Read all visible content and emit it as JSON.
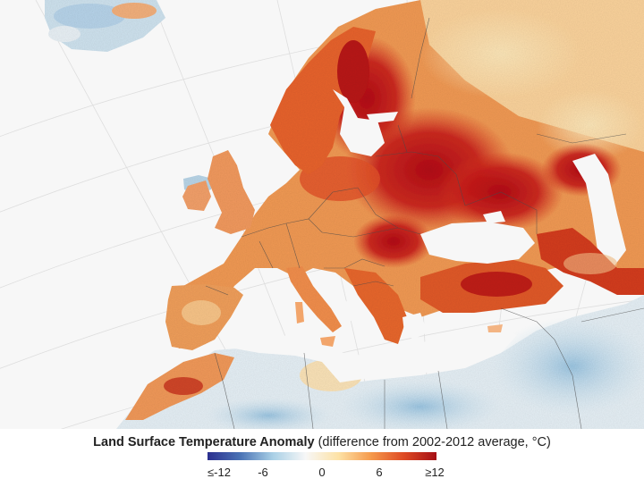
{
  "legend": {
    "title_bold": "Land Surface Temperature Anomaly",
    "title_rest": "(difference from 2002-2012 average, °C)",
    "ticks": [
      "≤-12",
      "-6",
      "0",
      "6",
      "≥12"
    ],
    "scale_colors": [
      "#2b2f8f",
      "#4a73b5",
      "#a9d0e6",
      "#f7f7f7",
      "#fde2a6",
      "#f59a4c",
      "#de4a24",
      "#a50f15"
    ]
  },
  "map": {
    "ocean_color": "#f7f7f7",
    "border_color": "#555555",
    "graticule_color": "#dcdcdc"
  }
}
